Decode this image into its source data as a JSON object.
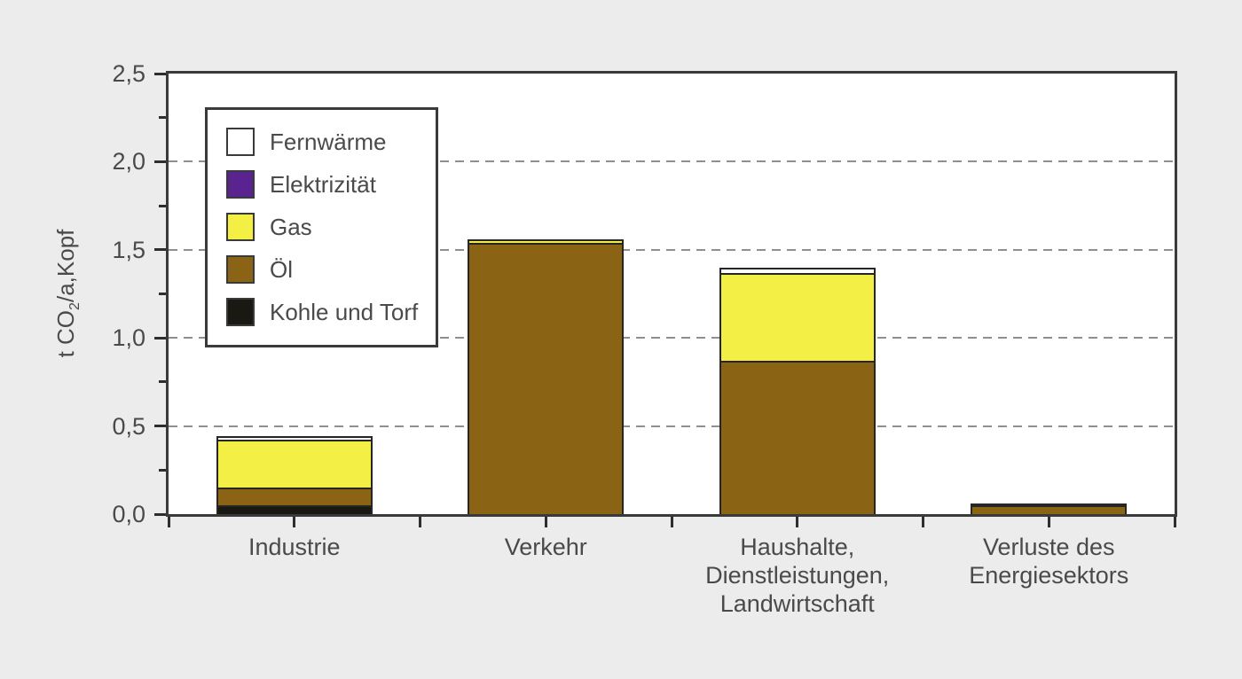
{
  "page": {
    "background": "#ECECEC"
  },
  "chart_data": {
    "type": "bar",
    "stacked": true,
    "title": "",
    "y_axis": {
      "label_prefix": "t CO",
      "label_sub": "2",
      "label_suffix": "/a,Kopf",
      "min": 0,
      "max": 2.5,
      "major_ticks": [
        0,
        0.5,
        1.0,
        1.5,
        2.0,
        2.5
      ],
      "major_tick_labels": [
        "0,0",
        "0,5",
        "1,0",
        "1,5",
        "2,0",
        "2,5"
      ],
      "minor_ticks": [
        0.25,
        0.75,
        1.25,
        1.75,
        2.25
      ],
      "gridlines_at": [
        0.5,
        1.0,
        1.5,
        2.0
      ],
      "grid_style": "dashed"
    },
    "categories": [
      {
        "lines": [
          "Industrie"
        ]
      },
      {
        "lines": [
          "Verkehr"
        ]
      },
      {
        "lines": [
          "Haushalte,",
          "Dienstleistungen,",
          "Landwirtschaft"
        ]
      },
      {
        "lines": [
          "Verluste des",
          "Energiesektors"
        ]
      }
    ],
    "series": [
      {
        "name": "Kohle und Torf",
        "color": "#1A1812",
        "values": [
          0.04,
          0,
          0,
          0
        ]
      },
      {
        "name": "Öl",
        "color": "#8A6414",
        "values": [
          0.1,
          1.53,
          0.86,
          0.04
        ]
      },
      {
        "name": "Gas",
        "color": "#F4EF45",
        "values": [
          0.27,
          0.02,
          0.5,
          0.01
        ]
      },
      {
        "name": "Elektrizität",
        "color": "#5A2490",
        "values": [
          0,
          0,
          0,
          0
        ]
      },
      {
        "name": "Fernwärme",
        "color": "#FFFFFF",
        "values": [
          0.02,
          0,
          0.03,
          0
        ]
      }
    ],
    "stack_order_bottom_to_top": [
      "Kohle und Torf",
      "Öl",
      "Gas",
      "Elektrizität",
      "Fernwärme"
    ],
    "totals": [
      0.43,
      1.55,
      1.39,
      0.05
    ],
    "legend": {
      "position": "top-left",
      "items": [
        {
          "label": "Fernwärme",
          "color": "#FFFFFF"
        },
        {
          "label": "Elektrizität",
          "color": "#5A2490"
        },
        {
          "label": "Gas",
          "color": "#F4EF45"
        },
        {
          "label": "Öl",
          "color": "#8A6414"
        },
        {
          "label": "Kohle und Torf",
          "color": "#1A1812"
        }
      ]
    },
    "colors": {
      "axis": "#3A3A3A",
      "grid": "#8F8F8F",
      "text": "#4A4A4A",
      "plot_background": "#FFFFFF",
      "segment_border": "#262626"
    }
  }
}
